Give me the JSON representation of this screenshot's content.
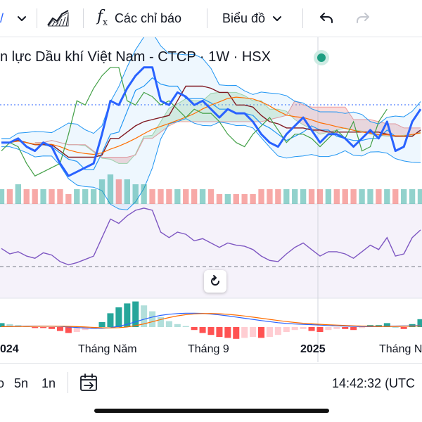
{
  "toolbar": {
    "indicators_label": "Các chỉ báo",
    "chart_type_label": "Biểu đồ",
    "icons": [
      "chevron-down-icon",
      "area-chart-icon",
      "function-icon",
      "undo-icon",
      "redo-icon"
    ]
  },
  "legend": {
    "symbol_title": "n lực Dầu khí Việt Nam - CTCP · 1W · HSX",
    "market_status": "open"
  },
  "time_axis": {
    "labels": [
      "024",
      "Tháng Năm",
      "Tháng 9",
      "2025",
      "Tháng N"
    ]
  },
  "bottom_bar": {
    "ranges": [
      "5n",
      "1n"
    ],
    "clock": "14:42:32 (UTC"
  },
  "colors": {
    "price_line": "#2962ff",
    "tenkan": "#2196f3",
    "kijun": "#801922",
    "lagging_span": "#43a047",
    "cloud_bull": "#a5d6a7",
    "cloud_bear": "#ef9a9a",
    "bollinger": "#2196f3",
    "moving_average": "#ff6d00",
    "volume_up": "#26a69a",
    "volume_down": "#ef5350",
    "rsi_line": "#7e57c2",
    "macd_line": "#2962ff",
    "signal_line": "#ff6d00"
  },
  "chart_data": {
    "type": "line",
    "price": [
      29,
      29,
      30,
      28,
      27,
      29,
      28,
      24,
      21,
      22,
      23,
      24,
      31,
      39,
      38,
      42,
      45,
      47,
      47,
      39,
      38,
      41,
      40,
      38,
      39,
      37,
      35,
      37,
      36,
      36,
      34,
      31,
      29,
      28,
      31,
      33,
      35,
      32,
      29,
      31,
      31,
      30,
      28,
      30,
      32,
      30,
      34,
      27,
      28,
      34,
      37
    ],
    "volume": [
      3,
      3,
      4,
      3,
      3,
      3,
      3,
      3,
      2,
      3,
      3,
      3,
      5,
      6,
      5,
      5,
      4,
      4,
      3,
      3,
      3,
      3,
      3,
      3,
      3,
      3,
      2,
      2,
      2,
      2,
      2,
      3,
      3,
      3,
      3,
      3,
      3,
      3,
      3,
      3,
      3,
      3,
      3,
      3,
      3,
      3,
      3,
      3,
      3,
      3,
      3
    ],
    "volume_up": [
      1,
      0,
      1,
      0,
      0,
      1,
      0,
      0,
      0,
      1,
      1,
      1,
      1,
      1,
      0,
      1,
      1,
      1,
      0,
      0,
      0,
      1,
      0,
      0,
      1,
      0,
      0,
      1,
      0,
      0,
      0,
      0,
      0,
      0,
      1,
      1,
      1,
      0,
      0,
      1,
      0,
      0,
      0,
      1,
      1,
      0,
      1,
      0,
      1,
      1,
      1
    ],
    "rsi": [
      45,
      40,
      42,
      38,
      36,
      41,
      39,
      33,
      30,
      32,
      35,
      38,
      55,
      72,
      68,
      75,
      80,
      82,
      80,
      60,
      55,
      60,
      58,
      52,
      54,
      50,
      46,
      50,
      48,
      47,
      44,
      38,
      34,
      33,
      40,
      46,
      50,
      44,
      38,
      42,
      42,
      40,
      36,
      42,
      48,
      44,
      55,
      38,
      40,
      55,
      62
    ],
    "macd_hist": [
      0.4,
      0.3,
      0.2,
      0.1,
      -0.1,
      -0.1,
      -0.2,
      -0.4,
      -0.6,
      -0.5,
      -0.3,
      -0.2,
      0.5,
      1.4,
      2.0,
      2.4,
      2.6,
      2.2,
      1.6,
      1.0,
      0.6,
      0.3,
      0.1,
      -0.3,
      -0.6,
      -0.8,
      -1.0,
      -1.1,
      -1.2,
      -1.1,
      -1.0,
      -1.1,
      -1.0,
      -0.8,
      -0.5,
      -0.3,
      -0.2,
      -0.4,
      -0.5,
      -0.3,
      -0.2,
      -0.2,
      -0.3,
      -0.1,
      0.2,
      0.2,
      0.4,
      0.0,
      -0.2,
      0.3,
      0.8
    ]
  }
}
